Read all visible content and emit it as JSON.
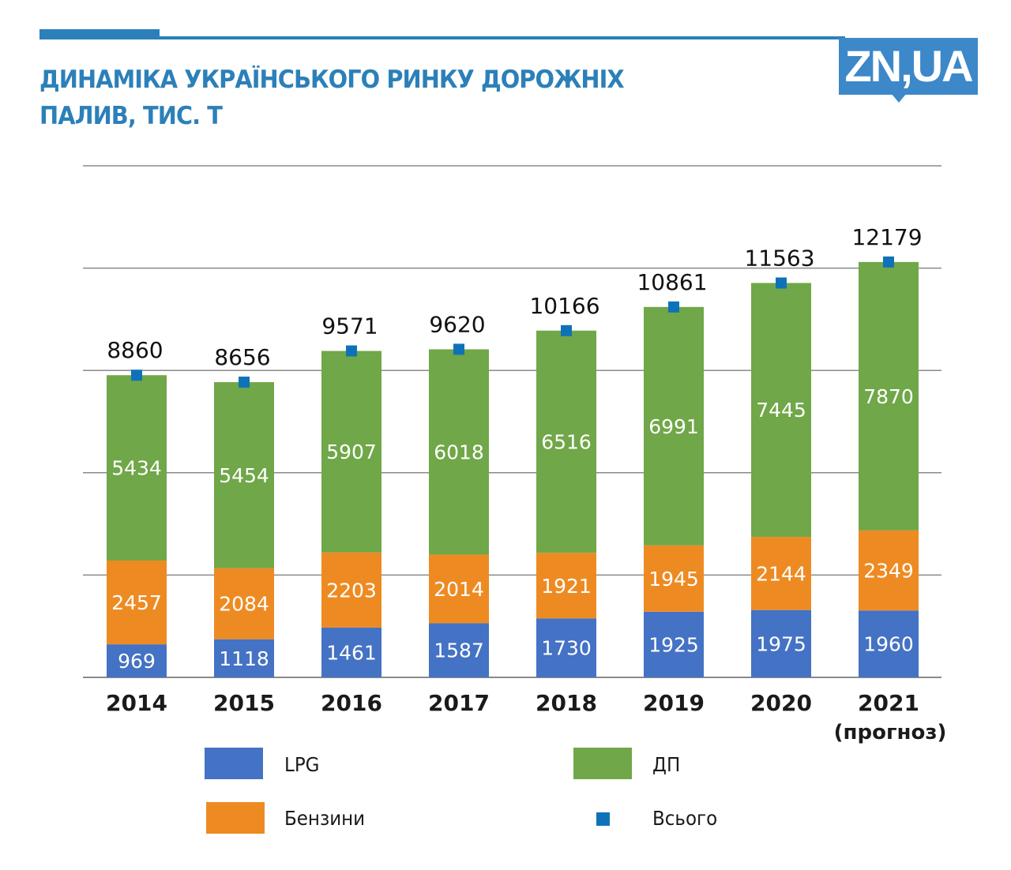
{
  "header": {
    "title_line1": "ДИНАМІКА УКРАЇНСЬКОГО РИНКУ ДОРОЖНІХ",
    "title_line2": "ПАЛИВ, ТИС. Т",
    "logo_text": "ZN,UA"
  },
  "colors": {
    "brand": "#2c80b9",
    "logo": "#3d88c9",
    "lpg": "#4472c4",
    "benzyny": "#ed8b22",
    "dp": "#70a748",
    "total_marker": "#0f72b8",
    "grid": "#8a8a8a"
  },
  "legend": {
    "items": [
      {
        "key": "lpg",
        "label": "LPG"
      },
      {
        "key": "dp",
        "label": "ДП"
      },
      {
        "key": "benzyny",
        "label": "Бензини"
      },
      {
        "key": "total",
        "label": "Всього"
      }
    ]
  },
  "chart_data": {
    "type": "bar",
    "stacked": true,
    "title": "ДИНАМІКА УКРАЇНСЬКОГО РИНКУ ДОРОЖНІХ ПАЛИВ, ТИС. Т",
    "xlabel": "",
    "ylabel": "",
    "categories": [
      "2014",
      "2015",
      "2016",
      "2017",
      "2018",
      "2019",
      "2020",
      "2021"
    ],
    "category_sublabels": [
      "",
      "",
      "",
      "",
      "",
      "",
      "",
      "(прогноз)"
    ],
    "series": [
      {
        "name": "LPG",
        "key": "lpg",
        "values": [
          969,
          1118,
          1461,
          1587,
          1730,
          1925,
          1975,
          1960
        ]
      },
      {
        "name": "Бензини",
        "key": "benzyny",
        "values": [
          2457,
          2084,
          2203,
          2014,
          1921,
          1945,
          2144,
          2349
        ]
      },
      {
        "name": "ДП",
        "key": "dp",
        "values": [
          5434,
          5454,
          5907,
          6018,
          6516,
          6991,
          7445,
          7870
        ]
      }
    ],
    "totals": {
      "name": "Всього",
      "values": [
        8860,
        8656,
        9571,
        9620,
        10166,
        10861,
        11563,
        12179
      ]
    },
    "ylim": [
      0,
      15000
    ],
    "grid": true,
    "y_gridlines": [
      0,
      3000,
      6000,
      9000,
      12000,
      15000
    ],
    "y_tick_labels_shown": false,
    "legend_position": "bottom"
  }
}
